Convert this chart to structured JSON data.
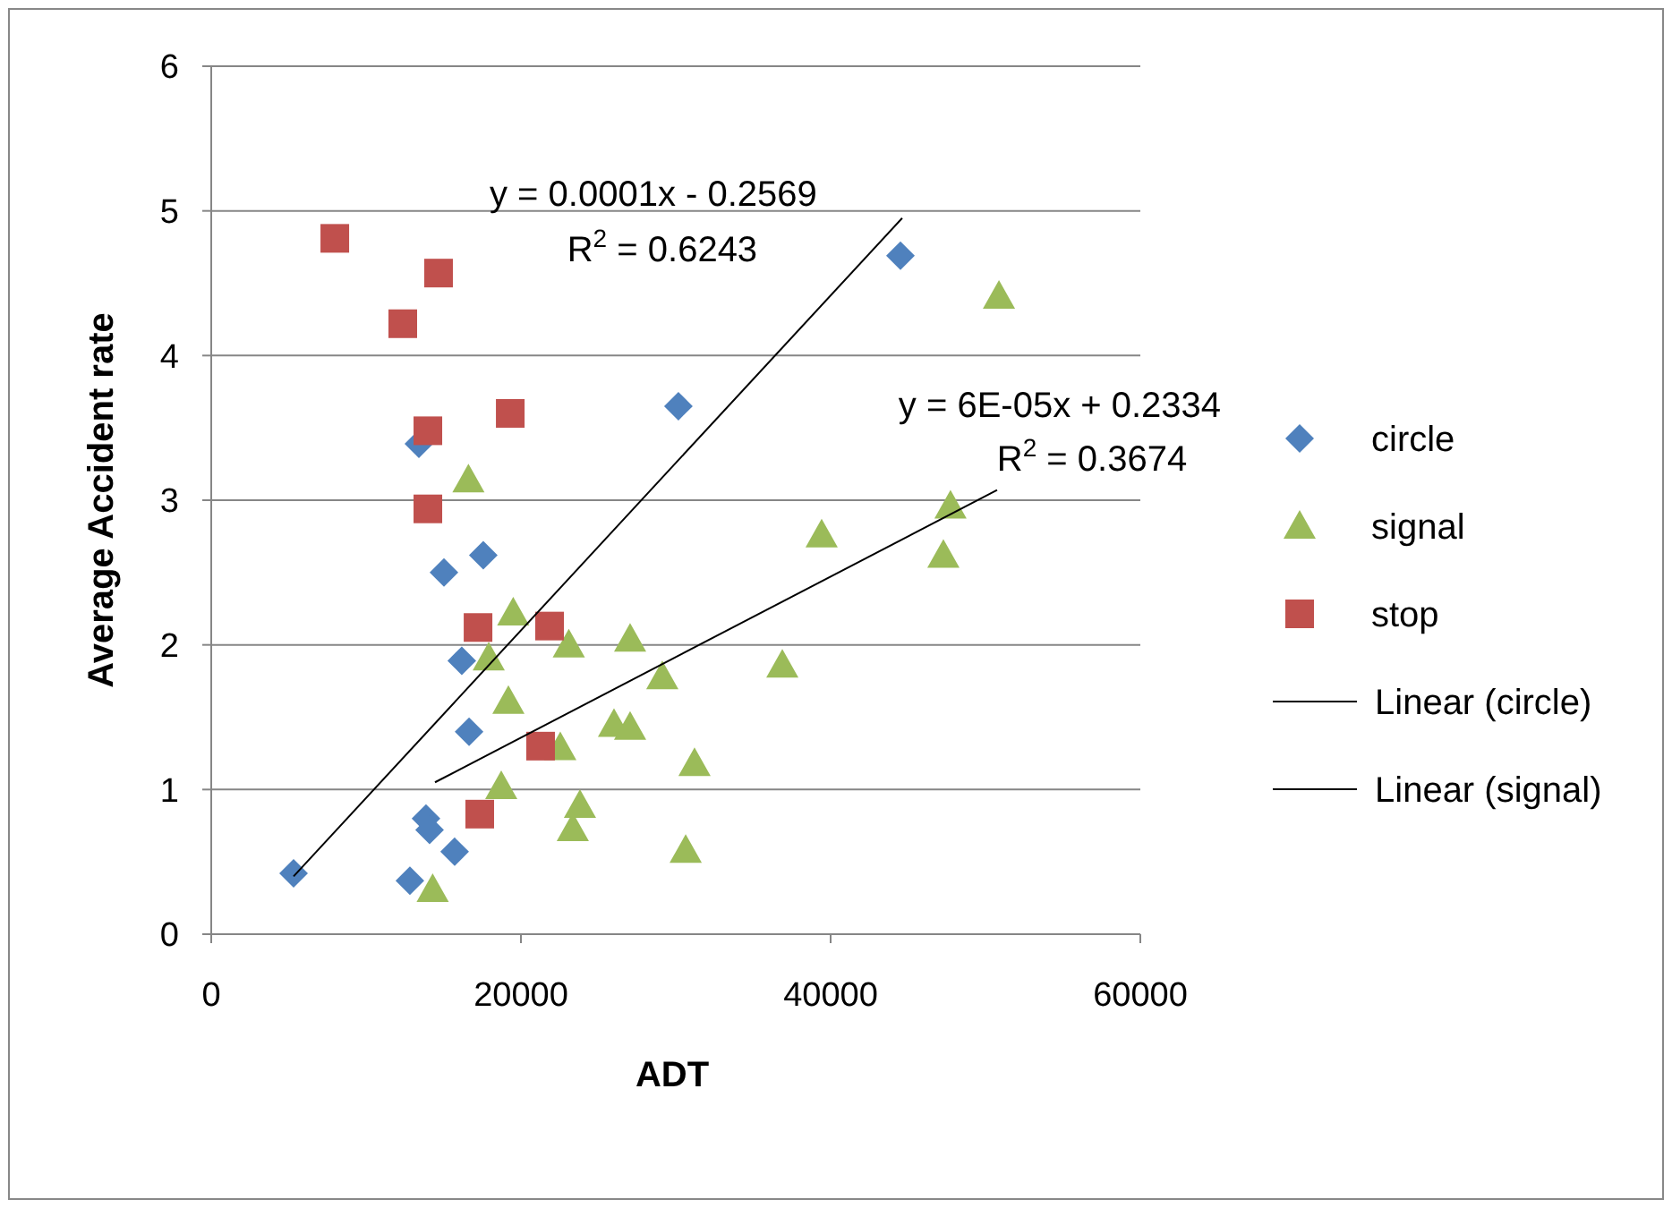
{
  "chart_data": {
    "type": "scatter",
    "xlabel": "ADT",
    "ylabel": "Average Accident rate",
    "xlim": [
      0,
      60000
    ],
    "ylim": [
      0,
      6
    ],
    "xticks": [
      0,
      20000,
      40000,
      60000
    ],
    "yticks": [
      0,
      1,
      2,
      3,
      4,
      5,
      6
    ],
    "grid": "y",
    "legend": "right",
    "series": [
      {
        "name": "circle",
        "color": "#4f81bd",
        "marker": "diamond",
        "x": [
          5318,
          13410,
          30170,
          44510,
          15030,
          17570,
          16180,
          16650,
          13870,
          14100,
          15720,
          12830
        ],
        "values": [
          0.42,
          3.39,
          3.65,
          4.69,
          2.5,
          2.62,
          1.89,
          1.4,
          0.8,
          0.72,
          0.57,
          0.37
        ]
      },
      {
        "name": "signal",
        "color": "#9bbb59",
        "marker": "triangle",
        "x": [
          50870,
          47740,
          47280,
          39420,
          36880,
          29130,
          27050,
          23090,
          19500,
          16610,
          17920,
          19190,
          26010,
          27050,
          22540,
          31210,
          18730,
          23810,
          23350,
          30640,
          14300
        ],
        "values": [
          4.41,
          2.96,
          2.62,
          2.76,
          1.86,
          1.78,
          2.04,
          2.0,
          2.22,
          3.14,
          1.91,
          1.61,
          1.45,
          1.43,
          1.29,
          1.18,
          1.02,
          0.89,
          0.73,
          0.58,
          0.31
        ]
      },
      {
        "name": "stop",
        "color": "#c0504d",
        "marker": "square",
        "x": [
          7980,
          14680,
          12370,
          19310,
          13990,
          13990,
          17230,
          21850,
          21270,
          17340
        ],
        "values": [
          4.81,
          4.57,
          4.22,
          3.6,
          3.48,
          2.94,
          2.12,
          2.13,
          1.3,
          0.83
        ]
      },
      {
        "name": "Linear (circle)",
        "type": "line",
        "color": "#000000",
        "marker": "none",
        "x": [
          5318,
          44620
        ],
        "values": [
          0.4,
          4.95
        ]
      },
      {
        "name": "Linear (signal)",
        "type": "line",
        "color": "#000000",
        "marker": "none",
        "x": [
          14450,
          50750
        ],
        "values": [
          1.05,
          3.07
        ]
      }
    ],
    "annotations": [
      "y = 0.0001x - 0.2569",
      "R$^{2}$ = 0.6243",
      "y = 6E-05x + 0.2334",
      "R$^{2}$ = 0.3674"
    ]
  }
}
